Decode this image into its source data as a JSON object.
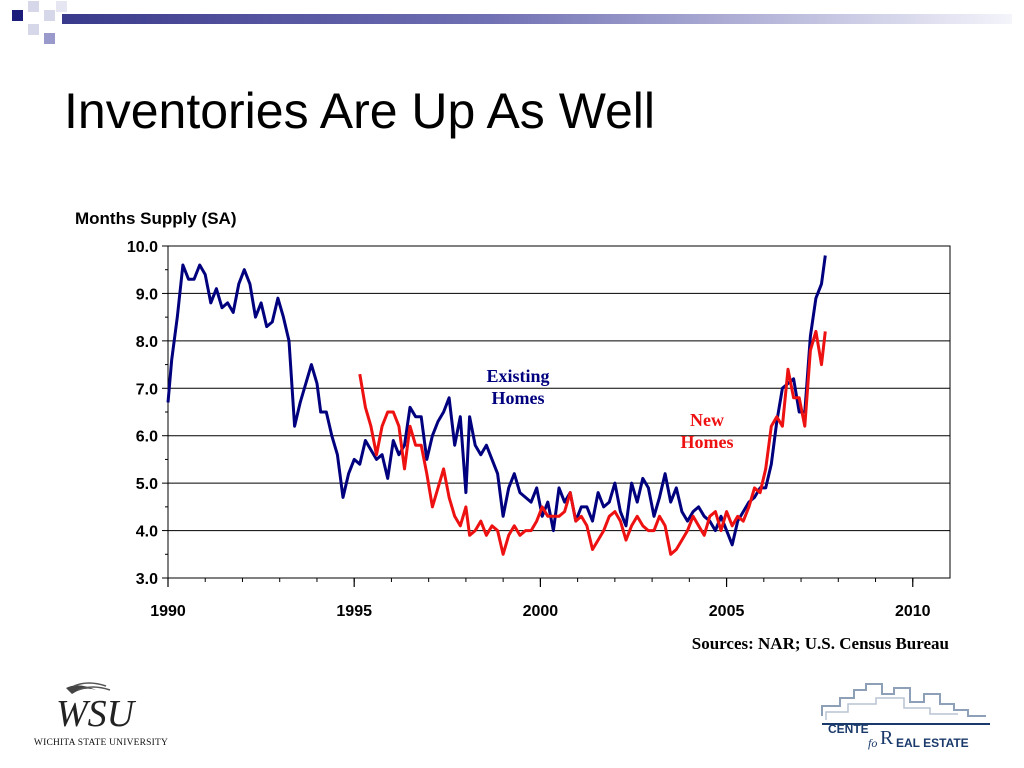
{
  "title": "Inventories Are Up As Well",
  "source": "Sources: NAR; U.S. Census Bureau",
  "colors": {
    "existing": "#00007f",
    "new": "#ee1111",
    "gridline": "#000000",
    "accent": "#3a3a8c"
  },
  "logos": {
    "wsu_name": "WICHITA STATE UNIVERSITY",
    "cre_line1": "CENTE",
    "cre_line2": "fo",
    "cre_line3": "EAL ESTATE"
  },
  "chart_data": {
    "type": "line",
    "ylabel": "Months Supply (SA)",
    "xlim": [
      1990,
      2011
    ],
    "ylim": [
      3.0,
      10.0
    ],
    "x_ticks": [
      1990,
      1995,
      2000,
      2005,
      2010
    ],
    "y_ticks": [
      "3.0",
      "4.0",
      "5.0",
      "6.0",
      "7.0",
      "8.0",
      "9.0",
      "10.0"
    ],
    "grid": true,
    "series": [
      {
        "name": "Existing Homes",
        "color": "#00007f",
        "x": [
          1990.0,
          1990.1,
          1990.25,
          1990.4,
          1990.55,
          1990.7,
          1990.85,
          1991.0,
          1991.15,
          1991.3,
          1991.45,
          1991.6,
          1991.75,
          1991.9,
          1992.05,
          1992.2,
          1992.35,
          1992.5,
          1992.65,
          1992.8,
          1992.95,
          1993.1,
          1993.25,
          1993.4,
          1993.55,
          1993.7,
          1993.85,
          1994.0,
          1994.1,
          1994.25,
          1994.4,
          1994.55,
          1994.7,
          1994.85,
          1995.0,
          1995.15,
          1995.3,
          1995.45,
          1995.6,
          1995.75,
          1995.9,
          1996.05,
          1996.2,
          1996.35,
          1996.5,
          1996.65,
          1996.8,
          1996.95,
          1997.1,
          1997.25,
          1997.4,
          1997.55,
          1997.7,
          1997.85,
          1998.0,
          1998.1,
          1998.25,
          1998.4,
          1998.55,
          1998.7,
          1998.85,
          1999.0,
          1999.15,
          1999.3,
          1999.45,
          1999.6,
          1999.75,
          1999.9,
          2000.05,
          2000.2,
          2000.35,
          2000.5,
          2000.65,
          2000.8,
          2000.95,
          2001.1,
          2001.25,
          2001.4,
          2001.55,
          2001.7,
          2001.85,
          2002.0,
          2002.15,
          2002.3,
          2002.45,
          2002.6,
          2002.75,
          2002.9,
          2003.05,
          2003.2,
          2003.35,
          2003.5,
          2003.65,
          2003.8,
          2003.95,
          2004.1,
          2004.25,
          2004.4,
          2004.55,
          2004.7,
          2004.85,
          2005.0,
          2005.15,
          2005.3,
          2005.45,
          2005.6,
          2005.75,
          2005.9,
          2006.05,
          2006.2,
          2006.35,
          2006.5,
          2006.65,
          2006.8,
          2006.95,
          2007.1,
          2007.25,
          2007.4,
          2007.55,
          2007.65
        ],
        "y": [
          6.7,
          7.6,
          8.5,
          9.6,
          9.3,
          9.3,
          9.6,
          9.4,
          8.8,
          9.1,
          8.7,
          8.8,
          8.6,
          9.2,
          9.5,
          9.2,
          8.5,
          8.8,
          8.3,
          8.4,
          8.9,
          8.5,
          8.0,
          6.2,
          6.7,
          7.1,
          7.5,
          7.1,
          6.5,
          6.5,
          6.0,
          5.6,
          4.7,
          5.2,
          5.5,
          5.4,
          5.9,
          5.7,
          5.5,
          5.6,
          5.1,
          5.9,
          5.6,
          5.8,
          6.6,
          6.4,
          6.4,
          5.5,
          6.0,
          6.3,
          6.5,
          6.8,
          5.8,
          6.4,
          4.8,
          6.4,
          5.8,
          5.6,
          5.8,
          5.5,
          5.2,
          4.3,
          4.9,
          5.2,
          4.8,
          4.7,
          4.6,
          4.9,
          4.3,
          4.6,
          4.0,
          4.9,
          4.6,
          4.8,
          4.2,
          4.5,
          4.5,
          4.2,
          4.8,
          4.5,
          4.6,
          5.0,
          4.4,
          4.1,
          5.0,
          4.6,
          5.1,
          4.9,
          4.3,
          4.7,
          5.2,
          4.6,
          4.9,
          4.4,
          4.2,
          4.4,
          4.5,
          4.3,
          4.2,
          4.0,
          4.3,
          4.0,
          3.7,
          4.2,
          4.4,
          4.6,
          4.7,
          4.9,
          4.9,
          5.4,
          6.3,
          7.0,
          7.1,
          7.2,
          6.5,
          6.5,
          8.1,
          8.9,
          9.2,
          9.8
        ]
      },
      {
        "name": "New Homes",
        "color": "#ee1111",
        "x": [
          1995.15,
          1995.3,
          1995.45,
          1995.6,
          1995.75,
          1995.9,
          1996.05,
          1996.2,
          1996.35,
          1996.5,
          1996.65,
          1996.8,
          1996.95,
          1997.1,
          1997.25,
          1997.4,
          1997.55,
          1997.7,
          1997.85,
          1998.0,
          1998.1,
          1998.25,
          1998.4,
          1998.55,
          1998.7,
          1998.85,
          1999.0,
          1999.15,
          1999.3,
          1999.45,
          1999.6,
          1999.75,
          1999.9,
          2000.05,
          2000.2,
          2000.35,
          2000.5,
          2000.65,
          2000.8,
          2000.95,
          2001.1,
          2001.25,
          2001.4,
          2001.55,
          2001.7,
          2001.85,
          2002.0,
          2002.15,
          2002.3,
          2002.45,
          2002.6,
          2002.75,
          2002.9,
          2003.05,
          2003.2,
          2003.35,
          2003.5,
          2003.65,
          2003.8,
          2003.95,
          2004.1,
          2004.25,
          2004.4,
          2004.55,
          2004.7,
          2004.85,
          2005.0,
          2005.15,
          2005.3,
          2005.45,
          2005.6,
          2005.75,
          2005.9,
          2006.05,
          2006.2,
          2006.35,
          2006.5,
          2006.65,
          2006.8,
          2006.95,
          2007.1,
          2007.25,
          2007.4,
          2007.55,
          2007.65
        ],
        "y": [
          7.3,
          6.6,
          6.2,
          5.6,
          6.2,
          6.5,
          6.5,
          6.2,
          5.3,
          6.2,
          5.8,
          5.8,
          5.2,
          4.5,
          4.9,
          5.3,
          4.7,
          4.3,
          4.1,
          4.5,
          3.9,
          4.0,
          4.2,
          3.9,
          4.1,
          4.0,
          3.5,
          3.9,
          4.1,
          3.9,
          4.0,
          4.0,
          4.2,
          4.5,
          4.3,
          4.3,
          4.3,
          4.4,
          4.8,
          4.2,
          4.3,
          4.1,
          3.6,
          3.8,
          4.0,
          4.3,
          4.4,
          4.2,
          3.8,
          4.1,
          4.3,
          4.1,
          4.0,
          4.0,
          4.3,
          4.1,
          3.5,
          3.6,
          3.8,
          4.0,
          4.3,
          4.1,
          3.9,
          4.3,
          4.4,
          4.0,
          4.4,
          4.1,
          4.3,
          4.2,
          4.5,
          4.9,
          4.8,
          5.3,
          6.2,
          6.4,
          6.2,
          7.4,
          6.8,
          6.8,
          6.2,
          7.8,
          8.2,
          7.5,
          8.2
        ]
      }
    ],
    "annotations": [
      {
        "series": "Existing Homes",
        "line1": "Existing",
        "line2": "Homes",
        "color": "#00007f"
      },
      {
        "series": "New Homes",
        "line1": "New",
        "line2": "Homes",
        "color": "#ee1111"
      }
    ]
  }
}
